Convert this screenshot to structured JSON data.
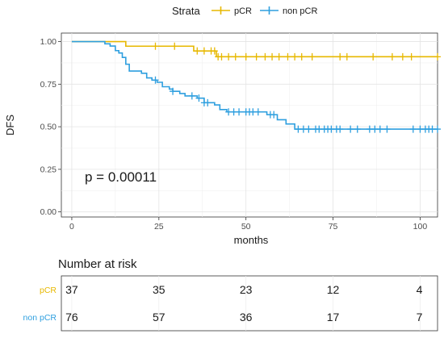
{
  "legend": {
    "title": "Strata",
    "items": [
      {
        "label": "pCR",
        "color": "#e7b800"
      },
      {
        "label": "non pCR",
        "color": "#2e9fdf"
      }
    ]
  },
  "annotation": {
    "p_value": "p = 0.00011"
  },
  "risk_table": {
    "title": "Number at risk",
    "times": [
      0,
      25,
      50,
      75,
      100
    ],
    "rows": [
      {
        "label": "pCR",
        "color": "#e7b800",
        "values": [
          "37",
          "35",
          "23",
          "12",
          "4"
        ]
      },
      {
        "label": "non pCR",
        "color": "#2e9fdf",
        "values": [
          "76",
          "57",
          "36",
          "17",
          "7"
        ]
      }
    ]
  },
  "chart_data": {
    "type": "line",
    "subtype": "kaplan-meier step curve",
    "xlabel": "months",
    "ylabel": "DFS",
    "xlim": [
      -3,
      105
    ],
    "ylim": [
      -0.03,
      1.05
    ],
    "xticks": [
      0,
      25,
      50,
      75,
      100
    ],
    "yticks": [
      "0.00",
      "0.25",
      "0.50",
      "0.75",
      "1.00"
    ],
    "grid": true,
    "legend_position": "top",
    "series": [
      {
        "name": "pCR",
        "color": "#e7b800",
        "steps": [
          [
            0,
            1.0
          ],
          [
            15.5,
            0.973
          ],
          [
            35,
            0.945
          ],
          [
            41.5,
            0.911
          ]
        ],
        "end_x": 105,
        "censor_x": [
          24,
          29.5,
          36,
          38,
          40,
          41,
          42,
          43,
          45,
          47,
          50,
          53,
          55.5,
          57.5,
          59.5,
          62,
          64,
          66,
          69,
          77,
          79,
          86.5,
          92,
          95,
          97.5,
          105
        ]
      },
      {
        "name": "non pCR",
        "color": "#2e9fdf",
        "steps": [
          [
            0,
            1.0
          ],
          [
            9.5,
            0.987
          ],
          [
            11,
            0.974
          ],
          [
            12.5,
            0.947
          ],
          [
            13.5,
            0.933
          ],
          [
            14.5,
            0.907
          ],
          [
            15.5,
            0.867
          ],
          [
            16.5,
            0.827
          ],
          [
            20,
            0.814
          ],
          [
            21.5,
            0.787
          ],
          [
            23,
            0.774
          ],
          [
            24.5,
            0.761
          ],
          [
            26,
            0.735
          ],
          [
            28,
            0.721
          ],
          [
            29,
            0.708
          ],
          [
            31,
            0.695
          ],
          [
            32.5,
            0.681
          ],
          [
            36,
            0.668
          ],
          [
            38,
            0.641
          ],
          [
            41,
            0.628
          ],
          [
            42.5,
            0.601
          ],
          [
            44.5,
            0.587
          ],
          [
            56,
            0.571
          ],
          [
            59,
            0.541
          ],
          [
            61.5,
            0.516
          ],
          [
            64,
            0.486
          ]
        ],
        "end_x": 105,
        "censor_x": [
          24,
          29,
          34.5,
          36.5,
          38,
          39,
          45,
          46.5,
          48,
          50,
          51,
          52,
          53.5,
          57,
          58,
          65,
          66.5,
          68,
          70,
          71,
          72.5,
          73.5,
          74.5,
          76,
          77,
          80,
          82,
          85.5,
          87,
          88.5,
          90.5,
          98,
          100,
          101.5,
          102.5,
          103.5,
          105
        ]
      }
    ]
  }
}
